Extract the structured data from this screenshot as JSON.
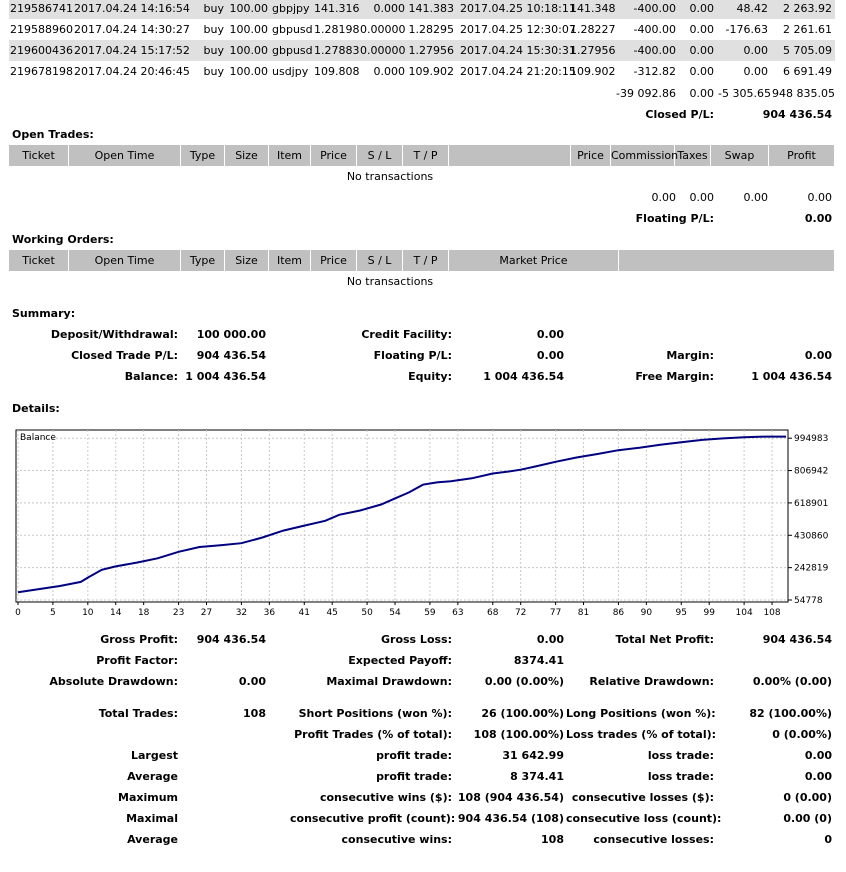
{
  "trades": [
    [
      "219586741",
      "2017.04.24 14:16:54",
      "buy",
      "100.00",
      "gbpjpy",
      "141.316",
      "0.000",
      "141.383",
      "2017.04.25 10:18:11",
      "141.348",
      "-400.00",
      "0.00",
      "48.42",
      "2 263.92"
    ],
    [
      "219588960",
      "2017.04.24 14:30:27",
      "buy",
      "100.00",
      "gbpusd",
      "1.28198",
      "0.00000",
      "1.28295",
      "2017.04.25 12:30:07",
      "1.28227",
      "-400.00",
      "0.00",
      "-176.63",
      "2 261.61"
    ],
    [
      "219600436",
      "2017.04.24 15:17:52",
      "buy",
      "100.00",
      "gbpusd",
      "1.27883",
      "0.00000",
      "1.27956",
      "2017.04.24 15:30:31",
      "1.27956",
      "-400.00",
      "0.00",
      "0.00",
      "5 705.09"
    ],
    [
      "219678198",
      "2017.04.24 20:46:45",
      "buy",
      "100.00",
      "usdjpy",
      "109.808",
      "0.000",
      "109.902",
      "2017.04.24 21:20:15",
      "109.902",
      "-312.82",
      "0.00",
      "0.00",
      "6 691.49"
    ]
  ],
  "totals": {
    "commission": "-39 092.86",
    "taxes": "0.00",
    "swap": "-5 305.65",
    "profit": "948 835.05"
  },
  "closed_pl": {
    "label": "Closed P/L:",
    "value": "904 436.54"
  },
  "open_trades": {
    "title": "Open Trades:",
    "headers": [
      "Ticket",
      "Open Time",
      "Type",
      "Size",
      "Item",
      "Price",
      "S / L",
      "T / P",
      "",
      "Price",
      "Commission",
      "Taxes",
      "Swap",
      "Profit"
    ],
    "empty": "No transactions",
    "totals": {
      "commission": "0.00",
      "taxes": "0.00",
      "swap": "0.00",
      "profit": "0.00"
    },
    "floating_label": "Floating P/L:",
    "floating_value": "0.00"
  },
  "working_orders": {
    "title": "Working Orders:",
    "headers": [
      "Ticket",
      "Open Time",
      "Type",
      "Size",
      "Item",
      "Price",
      "S / L",
      "T / P",
      "Market Price",
      ""
    ],
    "empty": "No transactions"
  },
  "summary": {
    "title": "Summary:",
    "deposit_label": "Deposit/Withdrawal:",
    "deposit": "100 000.00",
    "credit_label": "Credit Facility:",
    "credit": "0.00",
    "closed_label": "Closed Trade P/L:",
    "closed": "904 436.54",
    "floating_label": "Floating P/L:",
    "floating": "0.00",
    "margin_label": "Margin:",
    "margin": "0.00",
    "balance_label": "Balance:",
    "balance": "1 004 436.54",
    "equity_label": "Equity:",
    "equity": "1 004 436.54",
    "free_margin_label": "Free Margin:",
    "free_margin": "1 004 436.54"
  },
  "details": {
    "title": "Details:"
  },
  "chart_data": {
    "type": "line",
    "title": "Balance",
    "xlabel": "",
    "ylabel": "",
    "x_ticks": [
      "0",
      "5",
      "10",
      "14",
      "18",
      "23",
      "27",
      "32",
      "36",
      "41",
      "45",
      "50",
      "54",
      "59",
      "63",
      "68",
      "72",
      "77",
      "81",
      "86",
      "90",
      "95",
      "99",
      "104",
      "108"
    ],
    "y_ticks": [
      "994983",
      "806942",
      "618901",
      "430860",
      "242819",
      "54778"
    ],
    "xlim": [
      0,
      110
    ],
    "ylim": [
      54778,
      1031000
    ],
    "grid": true,
    "series": [
      {
        "name": "Balance",
        "color": "#000080",
        "x": [
          0,
          3,
          6,
          9,
          10,
          12,
          14,
          17,
          20,
          23,
          26,
          29,
          32,
          35,
          38,
          41,
          44,
          46,
          49,
          52,
          54,
          56,
          58,
          60,
          62,
          65,
          68,
          70,
          72,
          74,
          77,
          80,
          83,
          86,
          89,
          92,
          95,
          98,
          101,
          104,
          107,
          110
        ],
        "values": [
          100000,
          118000,
          136000,
          160000,
          185000,
          230000,
          250000,
          272000,
          297000,
          335000,
          363000,
          373000,
          385000,
          418000,
          458000,
          487000,
          515000,
          550000,
          575000,
          610000,
          645000,
          680000,
          725000,
          738000,
          745000,
          762000,
          790000,
          800000,
          812000,
          830000,
          858000,
          883000,
          903000,
          925000,
          940000,
          957000,
          972000,
          985000,
          994000,
          1000000,
          1004000,
          1004436
        ]
      }
    ]
  },
  "stats": {
    "gross_profit_label": "Gross Profit:",
    "gross_profit": "904 436.54",
    "gross_loss_label": "Gross Loss:",
    "gross_loss": "0.00",
    "total_net_label": "Total Net Profit:",
    "total_net": "904 436.54",
    "profit_factor_label": "Profit Factor:",
    "expected_label": "Expected Payoff:",
    "expected": "8374.41",
    "abs_dd_label": "Absolute Drawdown:",
    "abs_dd": "0.00",
    "max_dd_label": "Maximal Drawdown:",
    "max_dd": "0.00 (0.00%)",
    "rel_dd_label": "Relative Drawdown:",
    "rel_dd": "0.00% (0.00)",
    "total_trades_label": "Total Trades:",
    "total_trades": "108",
    "short_label": "Short Positions (won %):",
    "short": "26 (100.00%)",
    "long_label": "Long Positions (won %):",
    "long": "82 (100.00%)",
    "profit_trades_label": "Profit Trades (% of total):",
    "profit_trades": "108 (100.00%)",
    "loss_trades_label": "Loss trades (% of total):",
    "loss_trades": "0 (0.00%)",
    "largest_label": "Largest",
    "largest_profit_label": "profit trade:",
    "largest_profit": "31 642.99",
    "largest_loss_label": "loss trade:",
    "largest_loss": "0.00",
    "average_label": "Average",
    "avg_profit_label": "profit trade:",
    "avg_profit": "8 374.41",
    "avg_loss_label": "loss trade:",
    "avg_loss": "0.00",
    "maximum_label": "Maximum",
    "max_cw_label": "consecutive wins ($):",
    "max_cw": "108 (904 436.54)",
    "max_cl_label": "consecutive losses ($):",
    "max_cl": "0 (0.00)",
    "maximal_label": "Maximal",
    "maximal_cp_label": "consecutive profit (count):",
    "maximal_cp": "904 436.54 (108)",
    "maximal_cl_label": "consecutive loss (count):",
    "maximal_cl": "0.00 (0)",
    "average2_label": "Average",
    "avg_cw_label": "consecutive wins:",
    "avg_cw": "108",
    "avg_cl_label": "consecutive losses:",
    "avg_cl": "0"
  }
}
